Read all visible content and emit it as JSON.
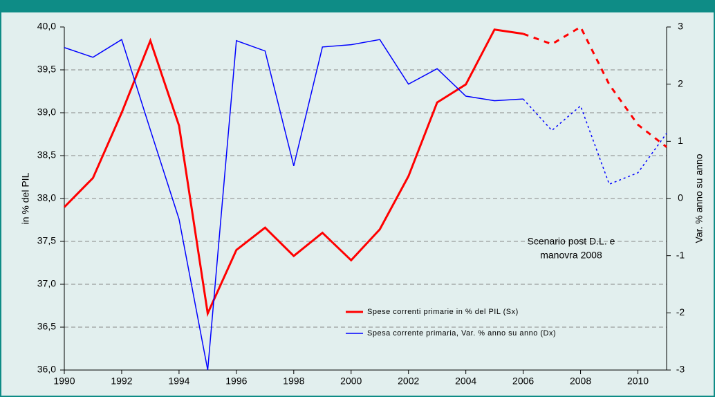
{
  "chart_data": {
    "type": "line",
    "ylabel": "in % del PIL",
    "y2label": "Var. % anno su anno",
    "x": [
      1990,
      1991,
      1992,
      1993,
      1994,
      1995,
      1996,
      1997,
      1998,
      1999,
      2000,
      2001,
      2002,
      2003,
      2004,
      2005,
      2006,
      2007,
      2008,
      2009,
      2010,
      2011
    ],
    "xlim": [
      1990,
      2011
    ],
    "xticks": [
      1990,
      1992,
      1994,
      1996,
      1998,
      2000,
      2002,
      2004,
      2006,
      2008,
      2010
    ],
    "ylim": [
      36,
      40
    ],
    "yticks": [
      {
        "value": 36,
        "label": "36,0"
      },
      {
        "value": 36.5,
        "label": "36,5"
      },
      {
        "value": 37,
        "label": "37,0"
      },
      {
        "value": 37.5,
        "label": "37,5"
      },
      {
        "value": 38,
        "label": "38,0"
      },
      {
        "value": 38.5,
        "label": "38,5"
      },
      {
        "value": 39,
        "label": "39,0"
      },
      {
        "value": 39.5,
        "label": "39,5"
      },
      {
        "value": 40,
        "label": "40,0"
      }
    ],
    "y2lim": [
      -3,
      3
    ],
    "y2ticks": [
      -3,
      -2,
      -1,
      0,
      1,
      2,
      3
    ],
    "grid": true,
    "dashed_from": 2006,
    "legend": "lower center",
    "annotation": [
      "Scenario post D.L. e",
      "manovra 2008"
    ],
    "series": [
      {
        "name": "Spese correnti primarie in % del PIL (Sx)",
        "color": "#ff0000",
        "line_width": 3,
        "values": [
          37.9,
          38.24,
          39.0,
          39.84,
          38.85,
          36.66,
          37.4,
          37.66,
          37.33,
          37.6,
          37.28,
          37.64,
          38.26,
          39.12,
          39.33,
          39.97,
          39.92,
          39.8,
          40.0,
          39.33,
          38.86,
          38.6
        ]
      },
      {
        "name": "Spesa corrente primaria, Var. % anno su anno (Dx)",
        "color": "#0000ff",
        "line_width": 1.5,
        "axis": "y2",
        "values": [
          2.64,
          2.47,
          2.78,
          1.2,
          -0.36,
          -3,
          2.76,
          2.58,
          0.57,
          2.65,
          2.69,
          2.78,
          2.0,
          2.27,
          1.79,
          1.71,
          1.74,
          1.19,
          1.62,
          0.25,
          0.45,
          1.14
        ]
      }
    ]
  }
}
